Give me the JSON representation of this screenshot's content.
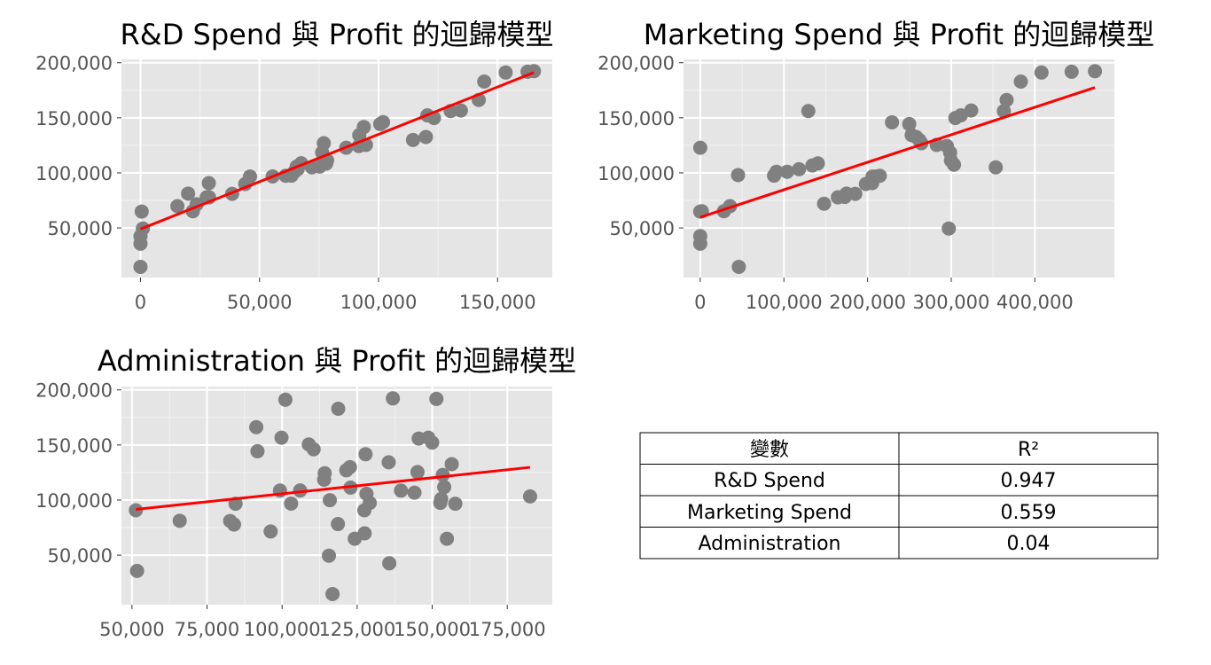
{
  "chart_data": [
    {
      "type": "scatter",
      "title": "R&D Spend 與 Profit 的迴歸模型",
      "xlabel": "",
      "ylabel": "",
      "xlim": [
        -8000,
        173000
      ],
      "ylim": [
        5000,
        203000
      ],
      "xticks": [
        0,
        50000,
        100000,
        150000
      ],
      "xtick_labels": [
        "0",
        "50,000",
        "100,000",
        "150,000"
      ],
      "yticks": [
        50000,
        100000,
        150000,
        200000
      ],
      "ytick_labels": [
        "50,000",
        "100,000",
        "150,000",
        "200,000"
      ],
      "grid": true,
      "point_color": "#808080",
      "line_color": "#ff0000",
      "points": [
        [
          0,
          14700
        ],
        [
          0,
          35700
        ],
        [
          0,
          42500
        ],
        [
          1000,
          49500
        ],
        [
          500,
          64900
        ],
        [
          15500,
          69800
        ],
        [
          20000,
          81200
        ],
        [
          22000,
          65200
        ],
        [
          23600,
          71500
        ],
        [
          27800,
          77800
        ],
        [
          28700,
          90700
        ],
        [
          28800,
          77800
        ],
        [
          38500,
          81000
        ],
        [
          44000,
          89900
        ],
        [
          46000,
          96700
        ],
        [
          55500,
          96800
        ],
        [
          61000,
          97400
        ],
        [
          63400,
          97500
        ],
        [
          64700,
          101000
        ],
        [
          65600,
          105700
        ],
        [
          66000,
          103300
        ],
        [
          67500,
          108700
        ],
        [
          72000,
          105000
        ],
        [
          75300,
          105700
        ],
        [
          76300,
          118500
        ],
        [
          78000,
          108500
        ],
        [
          78400,
          111300
        ],
        [
          77000,
          126900
        ],
        [
          86400,
          122800
        ],
        [
          91700,
          124300
        ],
        [
          91900,
          134300
        ],
        [
          93800,
          141600
        ],
        [
          94700,
          125400
        ],
        [
          100700,
          144300
        ],
        [
          101900,
          146100
        ],
        [
          114500,
          129900
        ],
        [
          119900,
          132600
        ],
        [
          120500,
          152200
        ],
        [
          123300,
          149800
        ],
        [
          130300,
          156100
        ],
        [
          134600,
          156600
        ],
        [
          142100,
          166200
        ],
        [
          144400,
          182900
        ],
        [
          153400,
          191100
        ],
        [
          162600,
          191800
        ],
        [
          165300,
          192300
        ]
      ],
      "fit": {
        "x": [
          0,
          165300
        ],
        "y": [
          49000,
          191100
        ]
      }
    },
    {
      "type": "scatter",
      "title": "Marketing Spend 與 Profit 的迴歸模型",
      "xlabel": "",
      "ylabel": "",
      "xlim": [
        -20000,
        495000
      ],
      "ylim": [
        5000,
        203000
      ],
      "xticks": [
        0,
        100000,
        200000,
        300000,
        400000
      ],
      "xtick_labels": [
        "0",
        "100,000",
        "200,000",
        "300,000",
        "400,000"
      ],
      "yticks": [
        50000,
        100000,
        150000,
        200000
      ],
      "ytick_labels": [
        "50,000",
        "100,000",
        "150,000",
        "200,000"
      ],
      "grid": true,
      "point_color": "#808080",
      "line_color": "#ff0000",
      "points": [
        [
          0,
          122800
        ],
        [
          0,
          64900
        ],
        [
          0,
          42600
        ],
        [
          0,
          35700
        ],
        [
          1900,
          65200
        ],
        [
          28300,
          65200
        ],
        [
          35500,
          69800
        ],
        [
          45200,
          98000
        ],
        [
          46100,
          14700
        ],
        [
          88200,
          97500
        ],
        [
          91100,
          101000
        ],
        [
          103800,
          101000
        ],
        [
          118100,
          103300
        ],
        [
          129200,
          156100
        ],
        [
          134000,
          106700
        ],
        [
          140600,
          108600
        ],
        [
          148000,
          72000
        ],
        [
          164500,
          77800
        ],
        [
          172800,
          78200
        ],
        [
          174900,
          81200
        ],
        [
          185300,
          81000
        ],
        [
          198000,
          89900
        ],
        [
          205500,
          90700
        ],
        [
          206000,
          96700
        ],
        [
          210800,
          96800
        ],
        [
          214600,
          97400
        ],
        [
          229200,
          145900
        ],
        [
          249800,
          144300
        ],
        [
          252700,
          134300
        ],
        [
          258000,
          132600
        ],
        [
          261800,
          129900
        ],
        [
          264300,
          126900
        ],
        [
          282600,
          125400
        ],
        [
          294900,
          124300
        ],
        [
          297100,
          49500
        ],
        [
          298700,
          118500
        ],
        [
          299700,
          111300
        ],
        [
          303300,
          107400
        ],
        [
          304900,
          149800
        ],
        [
          311500,
          152200
        ],
        [
          323900,
          156600
        ],
        [
          353200,
          105000
        ],
        [
          362900,
          156100
        ],
        [
          366200,
          166200
        ],
        [
          383200,
          182900
        ],
        [
          407900,
          191100
        ],
        [
          443900,
          191800
        ],
        [
          471800,
          192300
        ]
      ],
      "fit": {
        "x": [
          0,
          471800
        ],
        "y": [
          59700,
          177500
        ]
      }
    },
    {
      "type": "scatter",
      "title": "Administration 與 Profit 的迴歸模型",
      "xlabel": "",
      "ylabel": "",
      "xlim": [
        46500,
        190000
      ],
      "ylim": [
        5000,
        203000
      ],
      "xticks": [
        50000,
        75000,
        100000,
        125000,
        150000,
        175000
      ],
      "xtick_labels": [
        "50,000",
        "75,000",
        "100,000",
        "125,000",
        "150,000",
        "175,000"
      ],
      "yticks": [
        50000,
        100000,
        150000,
        200000
      ],
      "ytick_labels": [
        "50,000",
        "100,000",
        "150,000",
        "200,000"
      ],
      "grid": true,
      "point_color": "#808080",
      "line_color": "#ff0000",
      "points": [
        [
          51300,
          90700
        ],
        [
          51700,
          35700
        ],
        [
          65900,
          81200
        ],
        [
          82700,
          81000
        ],
        [
          84000,
          77800
        ],
        [
          84500,
          96700
        ],
        [
          91400,
          166200
        ],
        [
          91800,
          144300
        ],
        [
          96200,
          71500
        ],
        [
          99300,
          108600
        ],
        [
          99800,
          156600
        ],
        [
          101100,
          191100
        ],
        [
          103000,
          96800
        ],
        [
          106000,
          108700
        ],
        [
          108900,
          150500
        ],
        [
          110500,
          146100
        ],
        [
          114000,
          118500
        ],
        [
          114200,
          124300
        ],
        [
          115600,
          49500
        ],
        [
          115900,
          99900
        ],
        [
          116800,
          14700
        ],
        [
          118600,
          78200
        ],
        [
          118700,
          182900
        ],
        [
          121400,
          127000
        ],
        [
          122600,
          129900
        ],
        [
          122800,
          111300
        ],
        [
          124200,
          64900
        ],
        [
          127400,
          90700
        ],
        [
          127500,
          69800
        ],
        [
          127800,
          141600
        ],
        [
          128100,
          105700
        ],
        [
          129200,
          97400
        ],
        [
          135500,
          134300
        ],
        [
          135700,
          42600
        ],
        [
          136900,
          192300
        ],
        [
          139600,
          108600
        ],
        [
          144100,
          106700
        ],
        [
          145100,
          125400
        ],
        [
          145500,
          155800
        ],
        [
          148700,
          156600
        ],
        [
          150000,
          152200
        ],
        [
          151400,
          191800
        ],
        [
          152700,
          97500
        ],
        [
          153000,
          101000
        ],
        [
          153500,
          122800
        ],
        [
          154000,
          111800
        ],
        [
          154900,
          64900
        ],
        [
          156500,
          132600
        ],
        [
          157700,
          96700
        ],
        [
          182600,
          103300
        ]
      ],
      "fit": {
        "x": [
          51300,
          182600
        ],
        "y": [
          91500,
          129700
        ]
      }
    }
  ],
  "table": {
    "headers": [
      "變數",
      "R²"
    ],
    "rows": [
      [
        "R&D Spend",
        "0.947"
      ],
      [
        "Marketing Spend",
        "0.559"
      ],
      [
        "Administration",
        "0.04"
      ]
    ]
  }
}
